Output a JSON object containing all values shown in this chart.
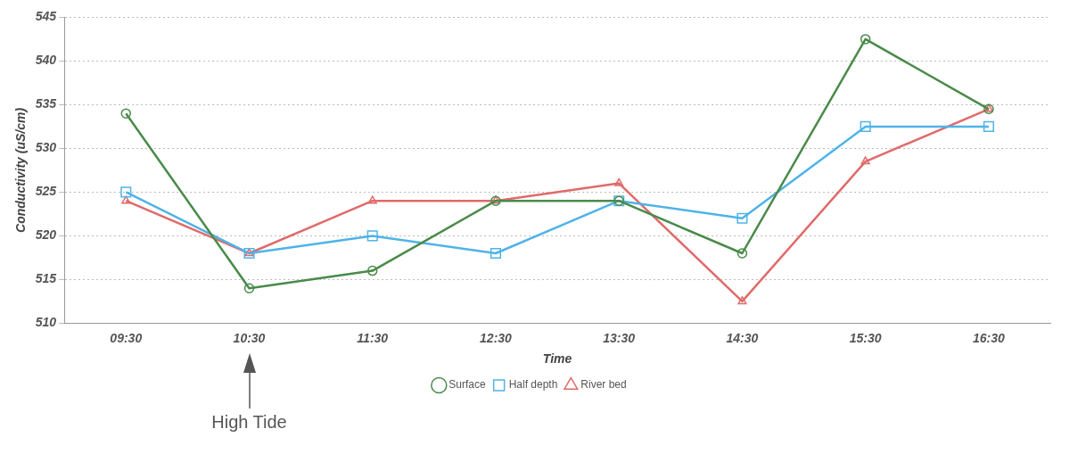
{
  "chart_data": {
    "type": "line",
    "xlabel": "Time",
    "ylabel": "Conductivity (uS/cm)",
    "categories": [
      "09:30",
      "10:30",
      "11:30",
      "12:30",
      "13:30",
      "14:30",
      "15:30",
      "16:30"
    ],
    "series": [
      {
        "name": "Surface",
        "color": "#4a8a4a",
        "marker": "circle",
        "values": [
          534,
          514,
          516,
          524,
          524,
          518,
          542.5,
          534.5
        ]
      },
      {
        "name": "Half depth",
        "color": "#4fb3e8",
        "marker": "square",
        "values": [
          525,
          518,
          520,
          518,
          524,
          522,
          532.5,
          532.5
        ]
      },
      {
        "name": "River bed",
        "color": "#e06a6a",
        "marker": "triangle",
        "values": [
          524,
          518,
          524,
          524,
          526,
          512.5,
          528.5,
          534.5
        ]
      }
    ],
    "ylim": [
      510,
      545
    ],
    "yticks": [
      510,
      515,
      520,
      525,
      530,
      535,
      540,
      545
    ],
    "grid": "y",
    "line_style": "solid",
    "legend": "bottom",
    "annotations": [
      "High Tide"
    ]
  }
}
